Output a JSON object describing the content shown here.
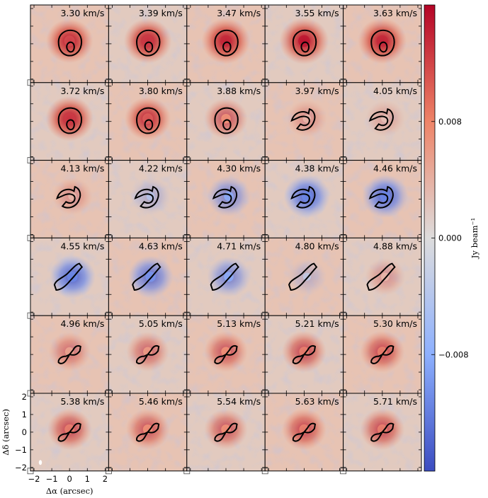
{
  "chart_data": {
    "type": "heatmap",
    "description_kind": "channel-map grid",
    "grid": {
      "rows": 6,
      "cols": 5
    },
    "velocity_unit": "km/s",
    "channels": [
      {
        "velocity": 3.3,
        "label": "3.30 km/s",
        "residual": 0.012,
        "shape": "ring"
      },
      {
        "velocity": 3.39,
        "label": "3.39 km/s",
        "residual": 0.013,
        "shape": "ring"
      },
      {
        "velocity": 3.47,
        "label": "3.47 km/s",
        "residual": 0.014,
        "shape": "ring"
      },
      {
        "velocity": 3.55,
        "label": "3.55 km/s",
        "residual": 0.015,
        "shape": "ring"
      },
      {
        "velocity": 3.63,
        "label": "3.63 km/s",
        "residual": 0.014,
        "shape": "ring"
      },
      {
        "velocity": 3.72,
        "label": "3.72 km/s",
        "residual": 0.013,
        "shape": "ring"
      },
      {
        "velocity": 3.8,
        "label": "3.80 km/s",
        "residual": 0.011,
        "shape": "ring"
      },
      {
        "velocity": 3.88,
        "label": "3.88 km/s",
        "residual": 0.008,
        "shape": "ring"
      },
      {
        "velocity": 3.97,
        "label": "3.97 km/s",
        "residual": 0.004,
        "shape": "hook"
      },
      {
        "velocity": 4.05,
        "label": "4.05 km/s",
        "residual": 0.003,
        "shape": "hook"
      },
      {
        "velocity": 4.13,
        "label": "4.13 km/s",
        "residual": 0.004,
        "shape": "hook"
      },
      {
        "velocity": 4.22,
        "label": "4.22 km/s",
        "residual": -0.004,
        "shape": "hook"
      },
      {
        "velocity": 4.3,
        "label": "4.30 km/s",
        "residual": -0.008,
        "shape": "hook"
      },
      {
        "velocity": 4.38,
        "label": "4.38 km/s",
        "residual": -0.011,
        "shape": "hook"
      },
      {
        "velocity": 4.46,
        "label": "4.46 km/s",
        "residual": -0.011,
        "shape": "hook"
      },
      {
        "velocity": 4.55,
        "label": "4.55 km/s",
        "residual": -0.011,
        "shape": "arc"
      },
      {
        "velocity": 4.63,
        "label": "4.63 km/s",
        "residual": -0.01,
        "shape": "arc"
      },
      {
        "velocity": 4.71,
        "label": "4.71 km/s",
        "residual": -0.008,
        "shape": "arc"
      },
      {
        "velocity": 4.8,
        "label": "4.80 km/s",
        "residual": -0.003,
        "shape": "arc"
      },
      {
        "velocity": 4.88,
        "label": "4.88 km/s",
        "residual": 0.004,
        "shape": "arc"
      },
      {
        "velocity": 4.96,
        "label": "4.96 km/s",
        "residual": 0.006,
        "shape": "bowtie"
      },
      {
        "velocity": 5.05,
        "label": "5.05 km/s",
        "residual": 0.007,
        "shape": "bowtie"
      },
      {
        "velocity": 5.13,
        "label": "5.13 km/s",
        "residual": 0.008,
        "shape": "bowtie"
      },
      {
        "velocity": 5.21,
        "label": "5.21 km/s",
        "residual": 0.009,
        "shape": "bowtie"
      },
      {
        "velocity": 5.3,
        "label": "5.30 km/s",
        "residual": 0.009,
        "shape": "bowtie"
      },
      {
        "velocity": 5.38,
        "label": "5.38 km/s",
        "residual": 0.009,
        "shape": "bowtie"
      },
      {
        "velocity": 5.46,
        "label": "5.46 km/s",
        "residual": 0.008,
        "shape": "bowtie"
      },
      {
        "velocity": 5.54,
        "label": "5.54 km/s",
        "residual": 0.008,
        "shape": "bowtie"
      },
      {
        "velocity": 5.63,
        "label": "5.63 km/s",
        "residual": 0.009,
        "shape": "bowtie"
      },
      {
        "velocity": 5.71,
        "label": "5.71 km/s",
        "residual": 0.009,
        "shape": "bowtie"
      }
    ],
    "x_axis": {
      "label": "Δα (arcsec)",
      "label_symbol": "Δα",
      "label_unit": "(arcsec)",
      "range": [
        -2.2,
        2.2
      ],
      "ticks": [
        -2,
        -1,
        0,
        1,
        2
      ],
      "tick_labels": [
        "−2",
        "−1",
        "0",
        "1",
        "2"
      ]
    },
    "y_axis": {
      "label": "Δδ (arcsec)",
      "label_symbol": "Δδ",
      "label_unit": "(arcsec)",
      "range": [
        -2.2,
        2.2
      ],
      "ticks": [
        -2,
        -1,
        0,
        1,
        2
      ],
      "tick_labels": [
        "−2",
        "−1",
        "0",
        "1",
        "2"
      ]
    },
    "colorbar": {
      "label": "Jy beam⁻¹",
      "label_main": "Jy beam",
      "label_exp": "−1",
      "range": [
        -0.016,
        0.016
      ],
      "ticks": [
        0.008,
        0.0,
        -0.008
      ],
      "tick_labels": [
        "0.008",
        "0.000",
        "−0.008"
      ],
      "colormap": "coolwarm"
    }
  }
}
